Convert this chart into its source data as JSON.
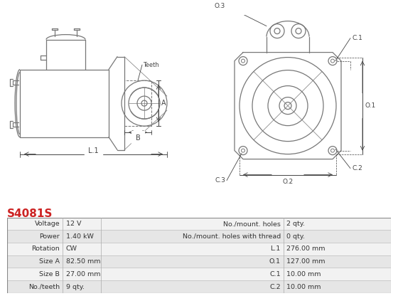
{
  "title": "S4081S",
  "title_color": "#cc2222",
  "bg_color": "#ffffff",
  "table_rows": [
    [
      "Voltage",
      "12 V",
      "No./mount. holes",
      "2 qty."
    ],
    [
      "Power",
      "1.40 kW",
      "No./mount. holes with thread",
      "0 qty."
    ],
    [
      "Rotation",
      "CW",
      "L.1",
      "276.00 mm"
    ],
    [
      "Size A",
      "82.50 mm",
      "O.1",
      "127.00 mm"
    ],
    [
      "Size B",
      "27.00 mm",
      "C.1",
      "10.00 mm"
    ],
    [
      "No./teeth",
      "9 qty.",
      "C.2",
      "10.00 mm"
    ]
  ],
  "row_bg_odd": "#f2f2f2",
  "row_bg_even": "#e6e6e6",
  "line_color": "#777777",
  "dim_color": "#444444"
}
